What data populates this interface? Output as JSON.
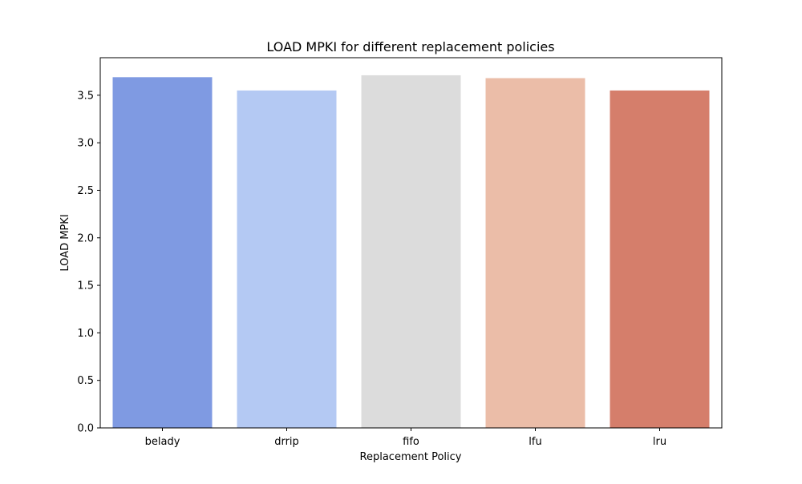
{
  "chart_data": {
    "type": "bar",
    "title": "LOAD MPKI for different replacement policies",
    "xlabel": "Replacement Policy",
    "ylabel": "LOAD MPKI",
    "categories": [
      "belady",
      "drrip",
      "fifo",
      "lfu",
      "lru"
    ],
    "values": [
      3.69,
      3.55,
      3.71,
      3.68,
      3.55
    ],
    "colors": [
      "#7f9ae2",
      "#b4c9f3",
      "#dcdcdc",
      "#ebbda8",
      "#d57e6b"
    ],
    "ylim": [
      0,
      3.895
    ],
    "yticks": [
      "0.0",
      "0.5",
      "1.0",
      "1.5",
      "2.0",
      "2.5",
      "3.0",
      "3.5"
    ],
    "grid": false,
    "legend": "none"
  }
}
